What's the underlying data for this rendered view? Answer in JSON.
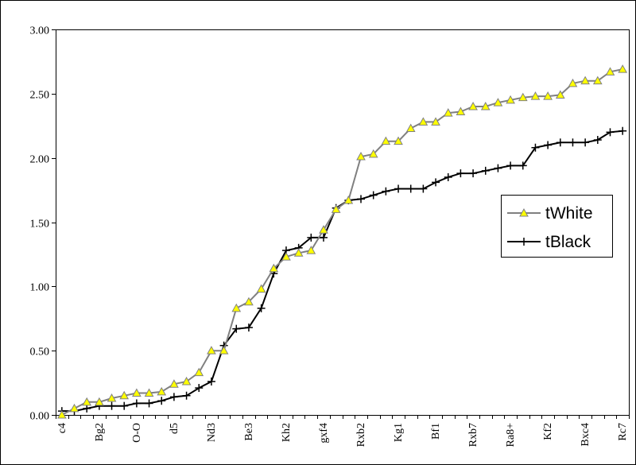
{
  "chart_data": {
    "type": "line",
    "title": "",
    "xlabel": "",
    "ylabel": "",
    "ylim": [
      0,
      3
    ],
    "yticks": [
      "0.00",
      "0.50",
      "1.00",
      "1.50",
      "2.00",
      "2.50",
      "3.00"
    ],
    "grid": true,
    "legend_position": "right",
    "x_tick_labels": [
      {
        "index": 0,
        "label": "c4"
      },
      {
        "index": 3,
        "label": "Bg2"
      },
      {
        "index": 6,
        "label": "O-O"
      },
      {
        "index": 9,
        "label": "d5"
      },
      {
        "index": 12,
        "label": "Nd3"
      },
      {
        "index": 15,
        "label": "Be3"
      },
      {
        "index": 18,
        "label": "Kh2"
      },
      {
        "index": 21,
        "label": "gxf4"
      },
      {
        "index": 24,
        "label": "Rxb2"
      },
      {
        "index": 27,
        "label": "Kg1"
      },
      {
        "index": 30,
        "label": "Bf1"
      },
      {
        "index": 33,
        "label": "Rxb7"
      },
      {
        "index": 36,
        "label": "Ra8+"
      },
      {
        "index": 39,
        "label": "Kf2"
      },
      {
        "index": 42,
        "label": "Bxc4"
      },
      {
        "index": 45,
        "label": "Rc7"
      }
    ],
    "series": [
      {
        "name": "tWhite",
        "color": "#808080",
        "marker": "triangle",
        "marker_fill": "#ffff00",
        "values": [
          0.0,
          0.05,
          0.1,
          0.1,
          0.13,
          0.15,
          0.17,
          0.17,
          0.18,
          0.24,
          0.26,
          0.33,
          0.5,
          0.5,
          0.83,
          0.88,
          0.98,
          1.14,
          1.23,
          1.26,
          1.28,
          1.44,
          1.6,
          1.67,
          2.01,
          2.03,
          2.13,
          2.13,
          2.23,
          2.28,
          2.28,
          2.35,
          2.36,
          2.4,
          2.4,
          2.43,
          2.45,
          2.47,
          2.48,
          2.48,
          2.49,
          2.58,
          2.6,
          2.6,
          2.67,
          2.69
        ]
      },
      {
        "name": "tBlack",
        "color": "#000000",
        "marker": "plus",
        "values": [
          0.03,
          0.03,
          0.05,
          0.07,
          0.07,
          0.07,
          0.09,
          0.09,
          0.11,
          0.14,
          0.15,
          0.21,
          0.26,
          0.54,
          0.67,
          0.68,
          0.83,
          1.1,
          1.28,
          1.3,
          1.38,
          1.38,
          1.61,
          1.67,
          1.68,
          1.71,
          1.74,
          1.76,
          1.76,
          1.76,
          1.81,
          1.85,
          1.88,
          1.88,
          1.9,
          1.92,
          1.94,
          1.94,
          2.08,
          2.1,
          2.12,
          2.12,
          2.12,
          2.14,
          2.2,
          2.21
        ]
      }
    ]
  }
}
